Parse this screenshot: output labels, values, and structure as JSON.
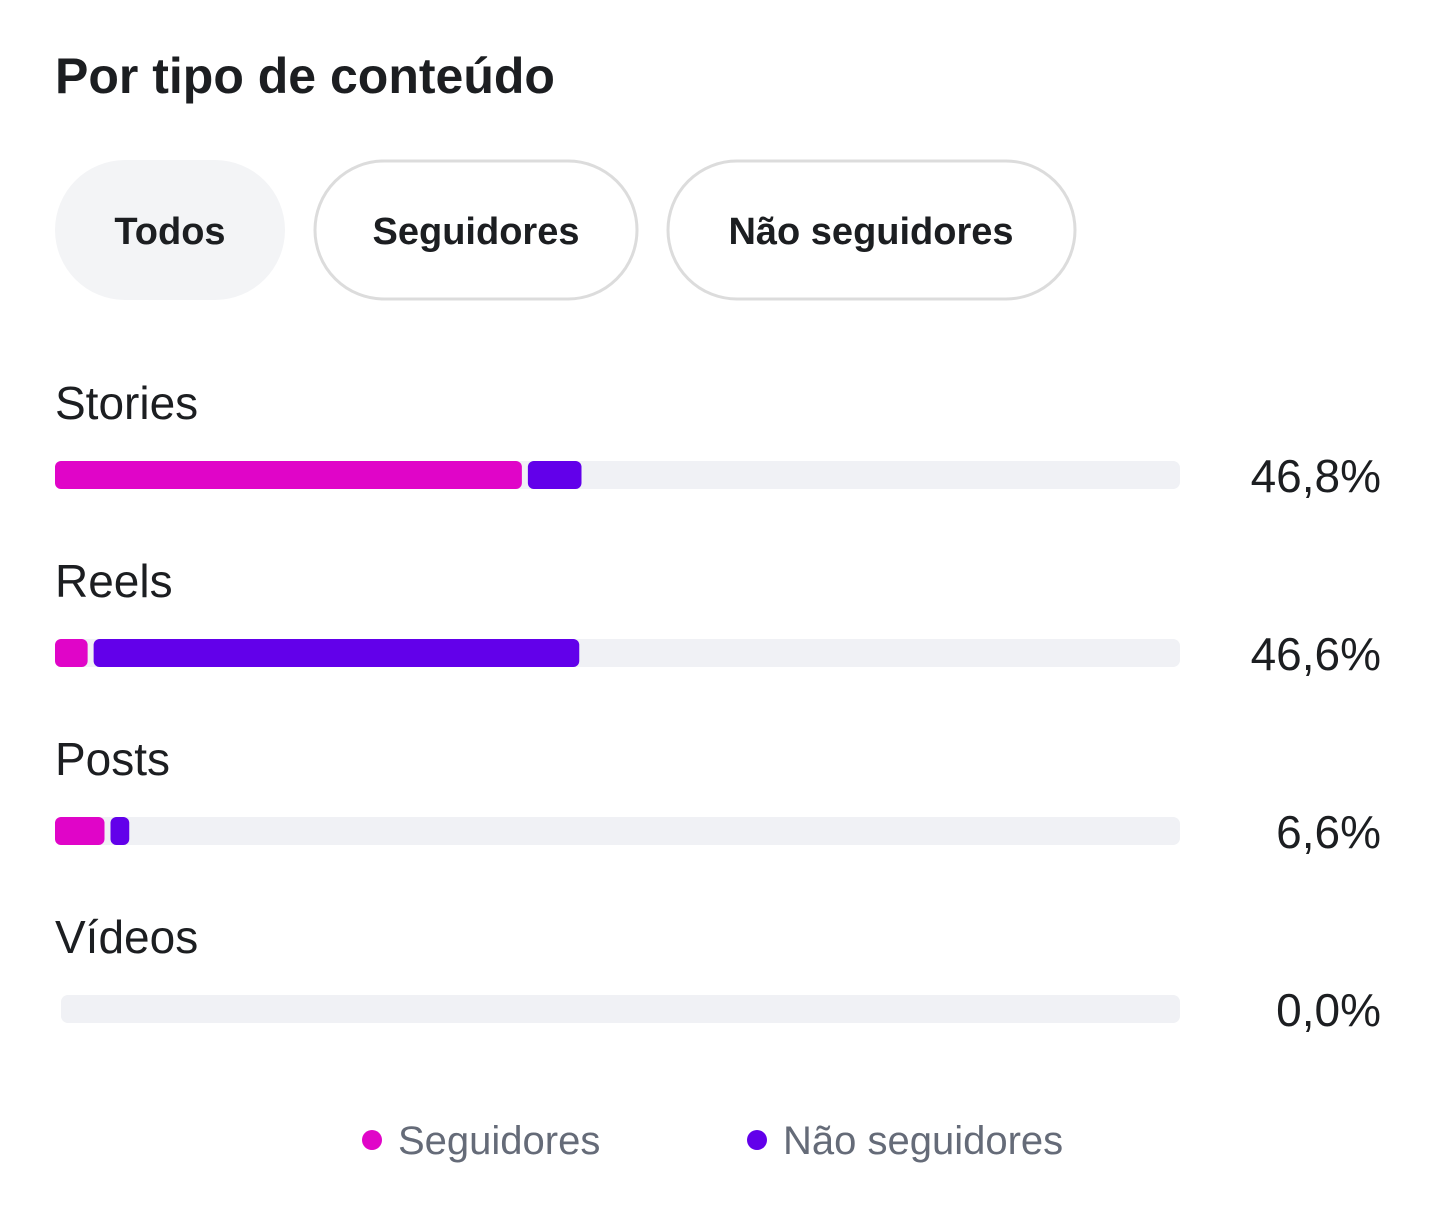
{
  "tabs": [
    "Todos",
    "Seguidores",
    "Não seguidores"
  ],
  "chart_data": {
    "type": "stacked-bar-horizontal",
    "title": "Por tipo de conteúdo",
    "categories": [
      "Stories",
      "Reels",
      "Posts",
      "Vídeos"
    ],
    "series": [
      {
        "name": "Seguidores",
        "color": "#e005c8",
        "values": [
          41.5,
          2.9,
          4.4,
          0
        ]
      },
      {
        "name": "Não seguidores",
        "color": "#6200ea",
        "values": [
          5.3,
          43.7,
          2.2,
          0
        ]
      }
    ],
    "totals": [
      46.8,
      46.6,
      6.6,
      0
    ],
    "value_labels": [
      "46,8%",
      "46,6%",
      "6,6%",
      "0,0%"
    ],
    "xlim": [
      0,
      100
    ],
    "track_color": "#f0f1f5"
  }
}
